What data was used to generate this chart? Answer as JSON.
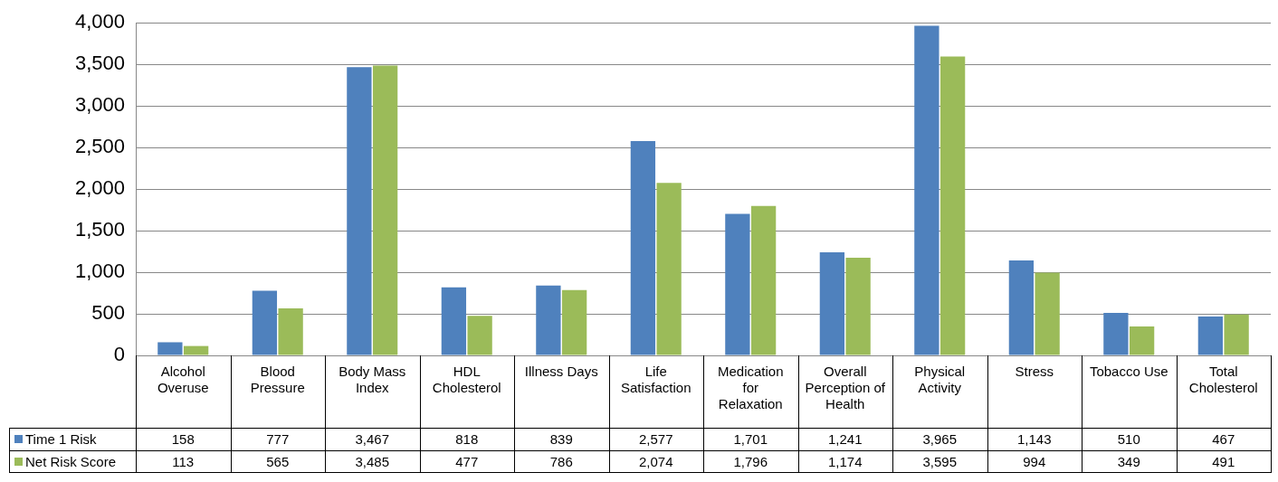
{
  "chart_data": {
    "type": "bar",
    "categories": [
      "Alcohol Overuse",
      "Blood Pressure",
      "Body Mass Index",
      "HDL Cholesterol",
      "Illness Days",
      "Life Satisfaction",
      "Medication for Relaxation",
      "Overall Perception of Health",
      "Physical Activity",
      "Stress",
      "Tobacco Use",
      "Total Cholesterol"
    ],
    "series": [
      {
        "name": "Time 1 Risk",
        "color": "#4f81bd",
        "values": [
          158,
          777,
          3467,
          818,
          839,
          2577,
          1701,
          1241,
          3965,
          1143,
          510,
          467
        ],
        "value_labels": [
          "158",
          "777",
          "3,467",
          "818",
          "839",
          "2,577",
          "1,701",
          "1,241",
          "3,965",
          "1,143",
          "510",
          "467"
        ]
      },
      {
        "name": "Net Risk Score",
        "color": "#9bbb59",
        "values": [
          113,
          565,
          3485,
          477,
          786,
          2074,
          1796,
          1174,
          3595,
          994,
          349,
          491
        ],
        "value_labels": [
          "113",
          "565",
          "3,485",
          "477",
          "786",
          "2,074",
          "1,796",
          "1,174",
          "3,595",
          "994",
          "349",
          "491"
        ]
      }
    ],
    "ylim": [
      0,
      4000
    ],
    "yticks": [
      0,
      500,
      {
        "value": 1000,
        "label": "1,000"
      },
      {
        "value": 1500,
        "label": "1,500"
      },
      {
        "value": 2000,
        "label": "2,000"
      },
      {
        "value": 2500,
        "label": "2,500"
      },
      {
        "value": 3000,
        "label": "3,000"
      },
      {
        "value": 3500,
        "label": "3,500"
      },
      {
        "value": 4000,
        "label": "4,000"
      }
    ],
    "grid": "y",
    "legend": "bottom"
  }
}
